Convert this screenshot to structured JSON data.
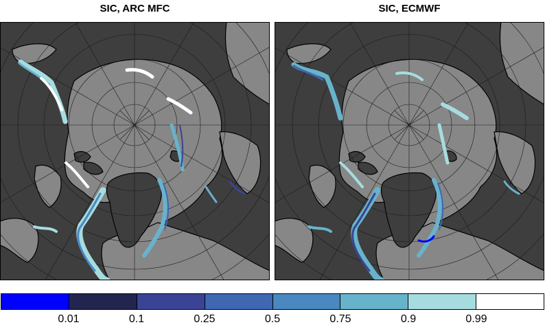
{
  "panels": [
    {
      "title": "SIC, ARC MFC"
    },
    {
      "title": "SIC, ECMWF"
    }
  ],
  "colorbar": {
    "colors": [
      "#0000ff",
      "#22254e",
      "#3b4494",
      "#3f67b2",
      "#4a88c0",
      "#68b3cc",
      "#a6dce0",
      "#ffffff"
    ],
    "tick_labels": [
      "0.01",
      "0.1",
      "0.25",
      "0.5",
      "0.75",
      "0.9",
      "0.99"
    ]
  },
  "colors": {
    "land": "#3e3e3e",
    "ocean": "#878787",
    "grid": "#1a1a1a"
  }
}
